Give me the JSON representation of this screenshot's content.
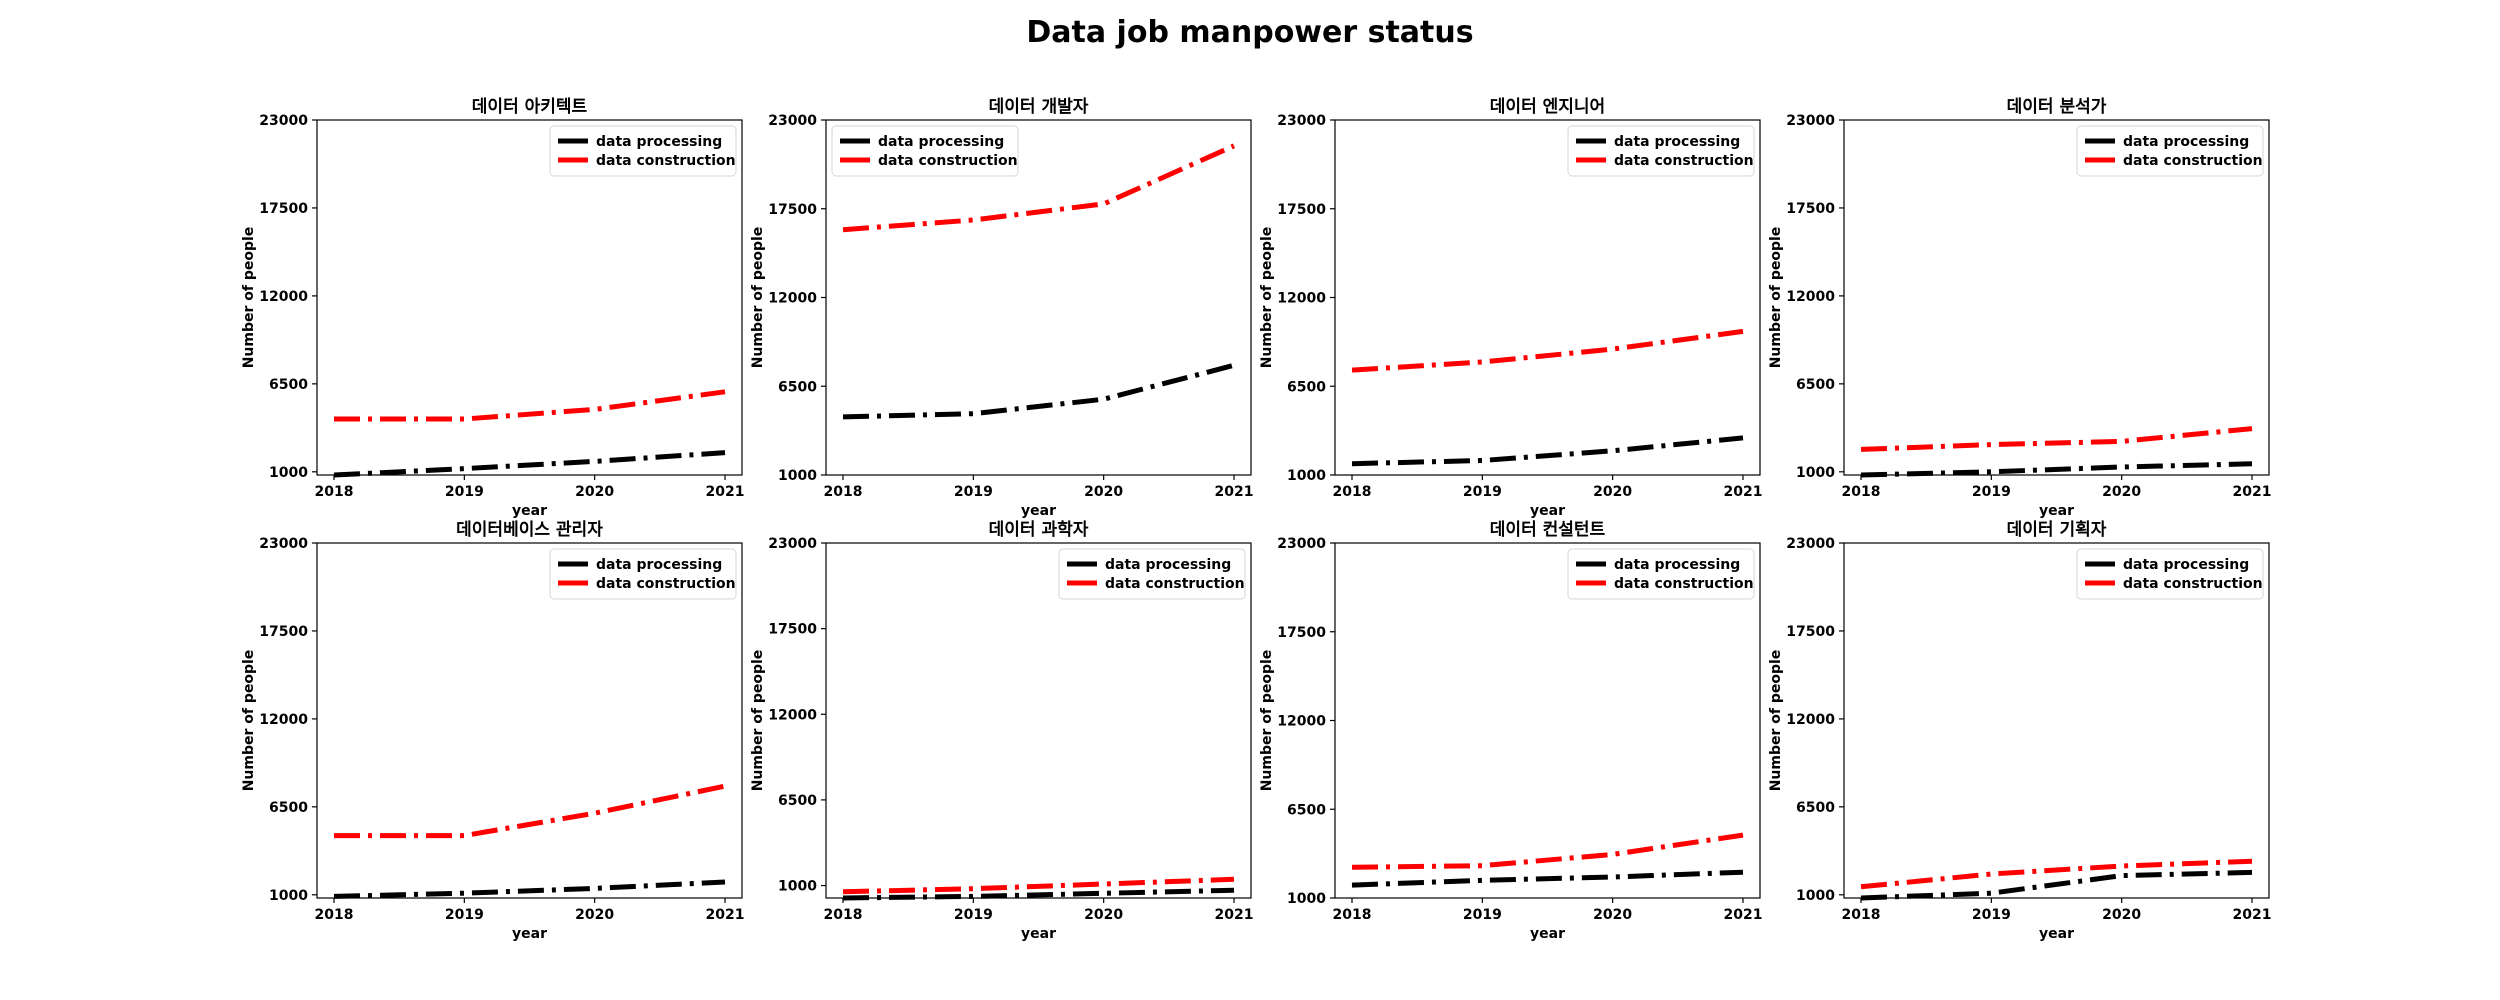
{
  "figure": {
    "suptitle": "Data job manpower status"
  },
  "chart_data": [
    {
      "type": "line",
      "title": "데이터 아키텍트",
      "xlabel": "year",
      "ylabel": "Number of people",
      "x": [
        "2018",
        "2019",
        "2020",
        "2021"
      ],
      "yticks": [
        1000,
        6500,
        12000,
        17500,
        23000
      ],
      "ylim": [
        800,
        23000
      ],
      "series": [
        {
          "name": "data processing",
          "values": [
            800,
            1200,
            1650,
            2200
          ],
          "color": "#000000"
        },
        {
          "name": "data construction",
          "values": [
            4300,
            4300,
            4900,
            6000
          ],
          "color": "#ff0000"
        }
      ],
      "legend": "upper right"
    },
    {
      "type": "line",
      "title": "데이터 개발자",
      "xlabel": "year",
      "ylabel": "Number of people",
      "x": [
        "2018",
        "2019",
        "2020",
        "2021"
      ],
      "yticks": [
        1000,
        6500,
        12000,
        17500,
        23000
      ],
      "ylim": [
        1000,
        23000
      ],
      "series": [
        {
          "name": "data processing",
          "values": [
            4600,
            4800,
            5700,
            7800
          ],
          "color": "#000000"
        },
        {
          "name": "data construction",
          "values": [
            16200,
            16800,
            17800,
            21400
          ],
          "color": "#ff0000"
        }
      ],
      "legend": "upper left"
    },
    {
      "type": "line",
      "title": "데이터 엔지니어",
      "xlabel": "year",
      "ylabel": "Number of people",
      "x": [
        "2018",
        "2019",
        "2020",
        "2021"
      ],
      "yticks": [
        1000,
        6500,
        12000,
        17500,
        23000
      ],
      "ylim": [
        1000,
        23000
      ],
      "series": [
        {
          "name": "data processing",
          "values": [
            1700,
            1900,
            2500,
            3300
          ],
          "color": "#000000"
        },
        {
          "name": "data construction",
          "values": [
            7500,
            8000,
            8800,
            9900
          ],
          "color": "#ff0000"
        }
      ],
      "legend": "upper right"
    },
    {
      "type": "line",
      "title": "데이터 분석가",
      "xlabel": "year",
      "ylabel": "Number of people",
      "x": [
        "2018",
        "2019",
        "2020",
        "2021"
      ],
      "yticks": [
        1000,
        6500,
        12000,
        17500,
        23000
      ],
      "ylim": [
        800,
        23000
      ],
      "series": [
        {
          "name": "data processing",
          "values": [
            800,
            1000,
            1300,
            1500
          ],
          "color": "#000000"
        },
        {
          "name": "data construction",
          "values": [
            2400,
            2700,
            2900,
            3700
          ],
          "color": "#ff0000"
        }
      ],
      "legend": "upper right"
    },
    {
      "type": "line",
      "title": "데이터베이스 관리자",
      "xlabel": "year",
      "ylabel": "Number of people",
      "x": [
        "2018",
        "2019",
        "2020",
        "2021"
      ],
      "yticks": [
        1000,
        6500,
        12000,
        17500,
        23000
      ],
      "ylim": [
        800,
        23000
      ],
      "series": [
        {
          "name": "data processing",
          "values": [
            900,
            1100,
            1400,
            1800
          ],
          "color": "#000000"
        },
        {
          "name": "data construction",
          "values": [
            4700,
            4700,
            6100,
            7800
          ],
          "color": "#ff0000"
        }
      ],
      "legend": "upper right"
    },
    {
      "type": "line",
      "title": "데이터 과학자",
      "xlabel": "year",
      "ylabel": "Number of people",
      "x": [
        "2018",
        "2019",
        "2020",
        "2021"
      ],
      "yticks": [
        1000,
        6500,
        12000,
        17500,
        23000
      ],
      "ylim": [
        200,
        23000
      ],
      "series": [
        {
          "name": "data processing",
          "values": [
            200,
            300,
            500,
            700
          ],
          "color": "#000000"
        },
        {
          "name": "data construction",
          "values": [
            600,
            800,
            1100,
            1400
          ],
          "color": "#ff0000"
        }
      ],
      "legend": "upper right"
    },
    {
      "type": "line",
      "title": "데이터 컨설턴트",
      "xlabel": "year",
      "ylabel": "Number of people",
      "x": [
        "2018",
        "2019",
        "2020",
        "2021"
      ],
      "yticks": [
        1000,
        6500,
        12000,
        17500,
        23000
      ],
      "ylim": [
        1000,
        23000
      ],
      "series": [
        {
          "name": "data processing",
          "values": [
            1800,
            2100,
            2300,
            2600
          ],
          "color": "#000000"
        },
        {
          "name": "data construction",
          "values": [
            2900,
            3000,
            3700,
            4900
          ],
          "color": "#ff0000"
        }
      ],
      "legend": "upper right"
    },
    {
      "type": "line",
      "title": "데이터 기획자",
      "xlabel": "year",
      "ylabel": "Number of people",
      "x": [
        "2018",
        "2019",
        "2020",
        "2021"
      ],
      "yticks": [
        1000,
        6500,
        12000,
        17500,
        23000
      ],
      "ylim": [
        800,
        23000
      ],
      "series": [
        {
          "name": "data processing",
          "values": [
            800,
            1100,
            2200,
            2400
          ],
          "color": "#000000"
        },
        {
          "name": "data construction",
          "values": [
            1500,
            2300,
            2800,
            3100
          ],
          "color": "#ff0000"
        }
      ],
      "legend": "upper right"
    }
  ]
}
